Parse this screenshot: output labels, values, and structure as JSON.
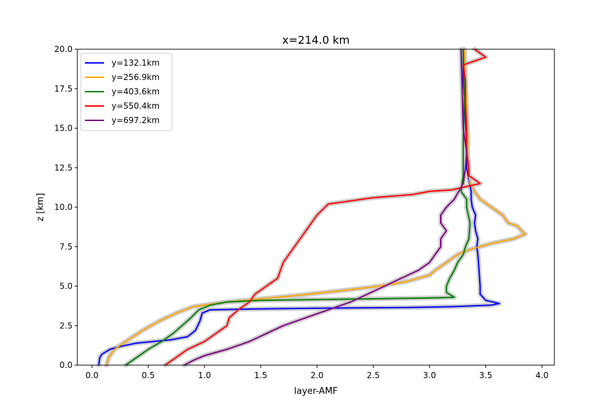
{
  "chart_data": {
    "type": "line",
    "title": "x=214.0 km",
    "xlabel": "layer-AMF",
    "ylabel": "z [km]",
    "xlim": [
      -0.13,
      4.11
    ],
    "ylim": [
      0,
      20
    ],
    "xticks": [
      0.0,
      0.5,
      1.0,
      1.5,
      2.0,
      2.5,
      3.0,
      3.5,
      4.0
    ],
    "xtick_labels": [
      "0.0",
      "0.5",
      "1.0",
      "1.5",
      "2.0",
      "2.5",
      "3.0",
      "3.5",
      "4.0"
    ],
    "yticks": [
      0,
      2.5,
      5,
      7.5,
      10,
      12.5,
      15,
      17.5,
      20
    ],
    "ytick_labels": [
      "0.0",
      "2.5",
      "5.0",
      "7.5",
      "10.0",
      "12.5",
      "15.0",
      "17.5",
      "20.0"
    ],
    "grid": false,
    "legend_position": "top-left",
    "uncertainty_band_color": "#c8c8c8",
    "series": [
      {
        "name": "y=132.1km",
        "color": "#0000ff",
        "x": [
          0.06,
          0.07,
          0.09,
          0.16,
          0.26,
          0.4,
          0.55,
          0.7,
          0.85,
          0.92,
          0.96,
          0.98,
          1.05,
          1.4,
          2.0,
          2.8,
          3.2,
          3.55,
          3.62,
          3.5,
          3.45,
          3.45,
          3.44,
          3.43,
          3.42,
          3.43,
          3.41,
          3.4,
          3.41,
          3.38,
          3.37,
          3.37,
          3.33,
          3.33,
          3.32,
          3.31,
          3.3,
          3.3,
          3.3
        ],
        "y": [
          0,
          0.5,
          0.7,
          1.0,
          1.2,
          1.4,
          1.5,
          1.6,
          1.8,
          2.2,
          2.8,
          3.3,
          3.5,
          3.55,
          3.6,
          3.65,
          3.7,
          3.8,
          3.9,
          4.1,
          4.5,
          5.0,
          6.0,
          7.0,
          7.5,
          8.0,
          8.5,
          9.0,
          9.5,
          10.0,
          10.5,
          11.0,
          12.5,
          14.0,
          15.5,
          17.0,
          18.0,
          19.0,
          20.0
        ]
      },
      {
        "name": "y=256.9km",
        "color": "#ffa500",
        "x": [
          0.13,
          0.15,
          0.2,
          0.3,
          0.45,
          0.6,
          0.75,
          0.9,
          1.2,
          1.5,
          1.8,
          2.2,
          2.55,
          2.8,
          3.0,
          3.05,
          3.15,
          3.25,
          3.35,
          3.55,
          3.75,
          3.85,
          3.82,
          3.78,
          3.7,
          3.65,
          3.55,
          3.45,
          3.4,
          3.36,
          3.35,
          3.34,
          3.34,
          3.33,
          3.32,
          3.31
        ],
        "y": [
          0,
          0.5,
          1.0,
          1.5,
          2.2,
          2.8,
          3.3,
          3.7,
          4.0,
          4.2,
          4.4,
          4.7,
          5.0,
          5.3,
          5.7,
          6.0,
          6.5,
          7.0,
          7.3,
          7.7,
          8.0,
          8.3,
          8.5,
          8.8,
          9.0,
          9.5,
          10.0,
          10.5,
          11.0,
          11.5,
          12.0,
          13.0,
          14.5,
          16.0,
          18.0,
          20.0
        ]
      },
      {
        "name": "y=403.6km",
        "color": "#008000",
        "x": [
          0.3,
          0.4,
          0.5,
          0.62,
          0.72,
          0.8,
          0.88,
          0.95,
          1.05,
          1.2,
          1.5,
          2.0,
          2.5,
          3.0,
          3.22,
          3.15,
          3.15,
          3.18,
          3.22,
          3.25,
          3.3,
          3.32,
          3.35,
          3.36,
          3.33,
          3.33,
          3.28,
          3.3,
          3.3,
          3.31,
          3.3
        ],
        "y": [
          0,
          0.5,
          1.0,
          1.5,
          2.0,
          2.5,
          3.0,
          3.5,
          3.8,
          4.0,
          4.1,
          4.15,
          4.2,
          4.25,
          4.3,
          4.6,
          5.0,
          5.5,
          6.0,
          6.5,
          7.0,
          7.5,
          8.0,
          9.0,
          10.0,
          10.5,
          11.0,
          12.0,
          14.0,
          17.0,
          20.0
        ]
      },
      {
        "name": "y=550.4km",
        "color": "#ff0000",
        "x": [
          0.65,
          0.75,
          0.85,
          1.0,
          1.1,
          1.2,
          1.22,
          1.3,
          1.4,
          1.45,
          1.55,
          1.65,
          1.7,
          1.75,
          1.85,
          1.9,
          1.95,
          2.0,
          2.1,
          2.5,
          2.85,
          3.0,
          3.2,
          3.45,
          3.35,
          3.35,
          3.33,
          3.33,
          3.32,
          3.32,
          3.3,
          3.5,
          3.4
        ],
        "y": [
          0,
          0.5,
          1.0,
          1.5,
          2.0,
          2.5,
          3.0,
          3.5,
          4.0,
          4.5,
          5.0,
          5.5,
          6.5,
          7.0,
          8.0,
          8.5,
          9.0,
          9.5,
          10.2,
          10.6,
          10.8,
          11.0,
          11.1,
          11.5,
          12.0,
          12.5,
          13.5,
          15.0,
          16.5,
          18.0,
          19.0,
          19.5,
          20.0
        ]
      },
      {
        "name": "y=697.2km",
        "color": "#800080",
        "x": [
          0.82,
          0.9,
          1.0,
          1.2,
          1.4,
          1.55,
          1.7,
          1.9,
          2.1,
          2.3,
          2.45,
          2.6,
          2.75,
          2.9,
          3.0,
          3.05,
          3.1,
          3.1,
          3.15,
          3.1,
          3.1,
          3.15,
          3.22,
          3.3,
          3.32,
          3.33,
          3.3,
          3.29,
          3.28
        ],
        "y": [
          0,
          0.3,
          0.6,
          1.0,
          1.5,
          2.0,
          2.5,
          3.0,
          3.5,
          4.0,
          4.5,
          5.0,
          5.5,
          6.0,
          6.5,
          7.0,
          7.5,
          8.0,
          8.5,
          9.0,
          9.5,
          10.0,
          10.5,
          11.5,
          12.5,
          13.5,
          15.0,
          17.5,
          20.0
        ]
      }
    ]
  }
}
